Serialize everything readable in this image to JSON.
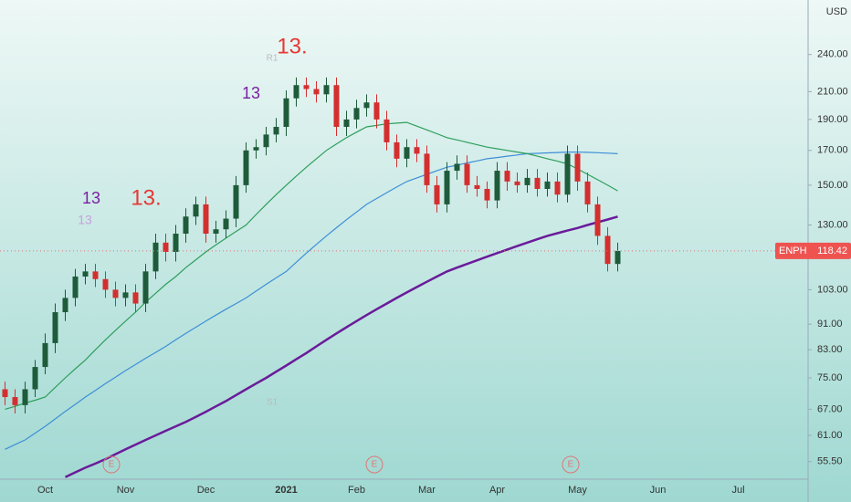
{
  "chart_data": {
    "type": "candlestick",
    "symbol": "ENPH",
    "currency": "USD",
    "last_price": 118.42,
    "log_scale": true,
    "ylim": [
      52.1,
      292
    ],
    "yticks": [
      {
        "value": 55.5,
        "label": "55.50"
      },
      {
        "value": 61,
        "label": "61.00"
      },
      {
        "value": 67,
        "label": "67.00"
      },
      {
        "value": 75,
        "label": "75.00"
      },
      {
        "value": 83,
        "label": "83.00"
      },
      {
        "value": 91,
        "label": "91.00"
      },
      {
        "value": 103,
        "label": "103.00"
      },
      {
        "value": 130,
        "label": "130.00"
      },
      {
        "value": 150,
        "label": "150.00"
      },
      {
        "value": 170,
        "label": "170.00"
      },
      {
        "value": 190,
        "label": "190.00"
      },
      {
        "value": 210,
        "label": "210.00"
      },
      {
        "value": 240,
        "label": "240.00"
      }
    ],
    "categories": [
      null,
      null,
      null,
      null,
      "Oct",
      null,
      null,
      null,
      null,
      null,
      null,
      null,
      "Nov",
      null,
      null,
      null,
      null,
      null,
      null,
      null,
      "Dec",
      null,
      null,
      null,
      null,
      null,
      null,
      null,
      "2021",
      null,
      null,
      null,
      null,
      null,
      null,
      "Feb",
      null,
      null,
      null,
      null,
      null,
      null,
      "Mar",
      null,
      null,
      null,
      null,
      null,
      null,
      "Apr",
      null,
      null,
      null,
      null,
      null,
      null,
      null,
      "May",
      null,
      null,
      null,
      null,
      null,
      null,
      null,
      "Jun",
      null,
      null,
      null,
      null,
      null,
      null,
      null,
      "Jul",
      null,
      null,
      null,
      null,
      null,
      null
    ],
    "up_color": "#1e5b3a",
    "down_color": "#d32f2f",
    "open": [
      72,
      70,
      68,
      72,
      78,
      85,
      95,
      100,
      108,
      110,
      107,
      103,
      100,
      102,
      98,
      110,
      122,
      118,
      126,
      134,
      140,
      126,
      128,
      133,
      150,
      170,
      172,
      180,
      185,
      205,
      215,
      212,
      208,
      215,
      185,
      190,
      198,
      202,
      190,
      175,
      165,
      172,
      168,
      150,
      140,
      158,
      162,
      150,
      148,
      142,
      158,
      152,
      150,
      154,
      148,
      152,
      145,
      168,
      152,
      140,
      125,
      113,
      null,
      null,
      null,
      null,
      null,
      null,
      null,
      null,
      null,
      null,
      null,
      null,
      null,
      null,
      null,
      null,
      null,
      null
    ],
    "high": [
      74,
      72,
      74,
      80,
      88,
      98,
      103,
      111,
      113,
      113,
      110,
      106,
      105,
      105,
      113,
      126,
      126,
      130,
      138,
      144,
      144,
      132,
      137,
      155,
      175,
      177,
      185,
      191,
      211,
      221,
      221,
      218,
      221,
      221,
      196,
      204,
      208,
      208,
      196,
      180,
      177,
      177,
      173,
      155,
      163,
      167,
      167,
      155,
      152,
      163,
      163,
      157,
      159,
      159,
      157,
      157,
      173,
      173,
      157,
      144,
      129,
      122,
      null,
      null,
      null,
      null,
      null,
      null,
      null,
      null,
      null,
      null,
      null,
      null,
      null,
      null,
      null,
      null,
      null,
      null
    ],
    "low": [
      68,
      66,
      66,
      70,
      76,
      82,
      92,
      97,
      105,
      104,
      100,
      97,
      97,
      95,
      95,
      107,
      114,
      114,
      122,
      130,
      122,
      122,
      124,
      129,
      146,
      165,
      167,
      175,
      179,
      199,
      206,
      202,
      202,
      179,
      179,
      184,
      192,
      184,
      170,
      160,
      160,
      163,
      146,
      136,
      136,
      153,
      146,
      144,
      138,
      138,
      147,
      146,
      146,
      144,
      144,
      141,
      141,
      147,
      136,
      121,
      110,
      110,
      null,
      null,
      null,
      null,
      null,
      null,
      null,
      null,
      null,
      null,
      null,
      null,
      null,
      null,
      null,
      null,
      null,
      null
    ],
    "close": [
      70,
      68,
      72,
      78,
      85,
      95,
      100,
      108,
      110,
      107,
      103,
      100,
      102,
      98,
      110,
      122,
      118,
      126,
      134,
      140,
      126,
      128,
      133,
      150,
      170,
      172,
      180,
      185,
      205,
      215,
      212,
      208,
      215,
      185,
      190,
      198,
      202,
      190,
      175,
      165,
      172,
      168,
      150,
      140,
      158,
      162,
      150,
      148,
      142,
      158,
      152,
      150,
      154,
      148,
      152,
      145,
      168,
      152,
      140,
      125,
      113,
      118.42,
      null,
      null,
      null,
      null,
      null,
      null,
      null,
      null,
      null,
      null,
      null,
      null,
      null,
      null,
      null,
      null,
      null,
      null
    ],
    "lines": [
      {
        "color": "#6a1b9a",
        "values": [
          null,
          null,
          null,
          null,
          null,
          null,
          52.5,
          53.4,
          54.3,
          55.1,
          56,
          57,
          58,
          59,
          60,
          61,
          62,
          63,
          64,
          65.2,
          66.4,
          67.7,
          69,
          70.5,
          72,
          73.5,
          75,
          76.7,
          78.4,
          80.2,
          82,
          84,
          86,
          88,
          90,
          92,
          94,
          96,
          98,
          100,
          102,
          104,
          106,
          108,
          110,
          111.5,
          113,
          114.5,
          116,
          117.5,
          119,
          120.5,
          122,
          123.5,
          125,
          126.2,
          127.4,
          128.6,
          130,
          131.3,
          132.6,
          134,
          null,
          null,
          null,
          null,
          null,
          null,
          null,
          null,
          null,
          null,
          null,
          null,
          null,
          null,
          null,
          null,
          null,
          null
        ]
      },
      {
        "color": "#3d8fd6",
        "values": [
          58,
          59,
          60,
          61.5,
          63,
          64.7,
          66.5,
          68.2,
          70,
          71.7,
          73.5,
          75.2,
          77,
          78.7,
          80.5,
          82.2,
          84,
          86,
          88,
          90,
          92,
          94,
          96,
          98,
          100,
          102.5,
          105,
          107.5,
          110,
          113.7,
          117.5,
          121.2,
          125,
          128.7,
          132.5,
          136.2,
          140,
          143,
          146,
          149,
          152,
          154,
          156,
          158,
          160,
          161.2,
          162.5,
          163.7,
          165,
          165.7,
          166.5,
          167.2,
          168,
          168.2,
          168.5,
          168.7,
          169,
          169,
          168.8,
          168.6,
          168.3,
          168,
          null,
          null,
          null,
          null,
          null,
          null,
          null,
          null,
          null,
          null,
          null,
          null,
          null,
          null,
          null,
          null,
          null,
          null
        ]
      },
      {
        "color": "#2e9e5b",
        "values": [
          67,
          67.7,
          68.5,
          69.2,
          70,
          72.5,
          75,
          77.5,
          80,
          83,
          86,
          89,
          92,
          95,
          98.5,
          101.7,
          105,
          108,
          111.5,
          114.7,
          118,
          121,
          124,
          127,
          130,
          135,
          140,
          145,
          150,
          155,
          160,
          165,
          170,
          174,
          178,
          181.5,
          185,
          186,
          187,
          187.5,
          188,
          185.5,
          183,
          180.5,
          178,
          176.5,
          175,
          173.5,
          172,
          171,
          170,
          169,
          168,
          166.5,
          165,
          163.5,
          162,
          159,
          156,
          153,
          150,
          147,
          null,
          null,
          null,
          null,
          null,
          null,
          null,
          null,
          null,
          null,
          null,
          null,
          null,
          null,
          null,
          null,
          null,
          null
        ]
      }
    ],
    "annotations": [
      "13.",
      "13.",
      "13",
      "13",
      "13",
      "R1",
      "S1",
      "E",
      "E",
      "E"
    ]
  }
}
